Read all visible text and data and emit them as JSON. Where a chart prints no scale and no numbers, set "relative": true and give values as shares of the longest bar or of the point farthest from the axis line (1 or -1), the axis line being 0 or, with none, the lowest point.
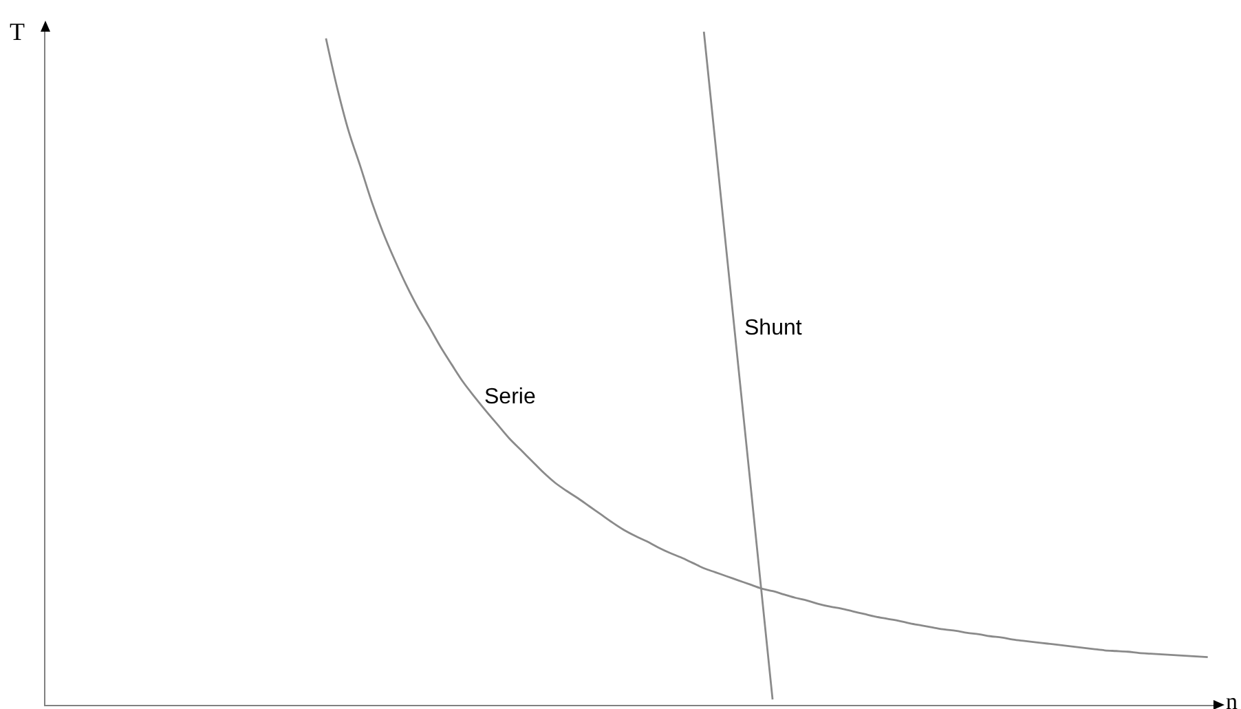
{
  "chart_data": {
    "type": "line",
    "relative": true,
    "xlabel": "n",
    "ylabel": "T",
    "line_style": "solid",
    "categories": [
      null,
      null,
      null,
      null,
      null,
      null,
      null,
      null,
      null,
      null,
      null,
      null,
      null,
      null,
      null,
      null,
      null,
      null,
      null,
      null,
      null,
      null,
      null,
      null,
      null,
      null,
      null,
      null,
      null,
      null,
      null,
      null,
      null,
      null,
      null,
      null,
      null,
      null,
      null,
      null,
      null,
      null,
      null,
      null,
      null,
      null,
      null,
      null,
      null,
      null,
      null,
      null,
      null,
      null,
      null,
      null,
      null,
      null,
      null,
      null,
      null,
      null,
      null,
      null,
      null,
      null,
      null,
      null,
      null,
      null,
      null,
      null,
      null,
      null,
      null,
      null,
      null,
      null,
      null,
      null,
      null,
      null,
      null,
      null,
      null,
      null,
      null,
      null,
      null,
      null,
      null,
      null,
      null,
      null,
      null,
      null,
      null,
      null,
      null,
      null,
      null,
      null
    ],
    "series": [
      {
        "name": "Serie",
        "color": "#8a8a8a",
        "values": [
          null,
          null,
          null,
          null,
          null,
          null,
          null,
          null,
          null,
          null,
          null,
          null,
          null,
          null,
          null,
          null,
          null,
          null,
          null,
          null,
          null,
          null,
          null,
          null,
          0.99,
          0.915,
          0.851,
          0.8,
          0.747,
          0.701,
          0.661,
          0.624,
          0.591,
          0.562,
          0.532,
          0.505,
          0.479,
          0.457,
          0.436,
          0.416,
          0.396,
          0.379,
          0.362,
          0.345,
          0.33,
          0.318,
          0.307,
          0.295,
          0.283,
          0.271,
          0.26,
          0.251,
          0.243,
          0.234,
          0.226,
          0.219,
          0.211,
          0.203,
          0.197,
          0.191,
          0.185,
          0.179,
          0.173,
          0.169,
          0.164,
          0.159,
          0.155,
          0.15,
          0.146,
          0.143,
          0.139,
          0.135,
          0.131,
          0.128,
          0.125,
          0.121,
          0.118,
          0.115,
          0.112,
          0.11,
          0.107,
          0.105,
          0.102,
          0.1,
          0.097,
          0.095,
          0.093,
          0.091,
          0.089,
          0.087,
          0.085,
          0.083,
          0.081,
          0.08,
          0.079,
          0.077,
          0.076,
          0.075,
          0.074,
          0.073,
          0.072,
          0.071
        ]
      },
      {
        "name": "Shunt",
        "color": "#8a8a8a",
        "values": [
          null,
          null,
          null,
          null,
          null,
          null,
          null,
          null,
          null,
          null,
          null,
          null,
          null,
          null,
          null,
          null,
          null,
          null,
          null,
          null,
          null,
          null,
          null,
          null,
          null,
          null,
          null,
          null,
          null,
          null,
          null,
          null,
          null,
          null,
          null,
          null,
          null,
          null,
          null,
          null,
          null,
          null,
          null,
          null,
          null,
          null,
          null,
          null,
          null,
          null,
          null,
          null,
          null,
          null,
          null,
          null,
          null,
          1.0,
          0.835,
          0.669,
          0.504,
          0.339,
          0.173,
          0.008,
          null,
          null,
          null,
          null,
          null,
          null,
          null,
          null,
          null,
          null,
          null,
          null,
          null,
          null,
          null,
          null,
          null,
          null,
          null,
          null,
          null,
          null,
          null,
          null,
          null,
          null,
          null,
          null,
          null,
          null,
          null,
          null,
          null,
          null,
          null,
          null,
          null,
          null
        ]
      }
    ]
  }
}
